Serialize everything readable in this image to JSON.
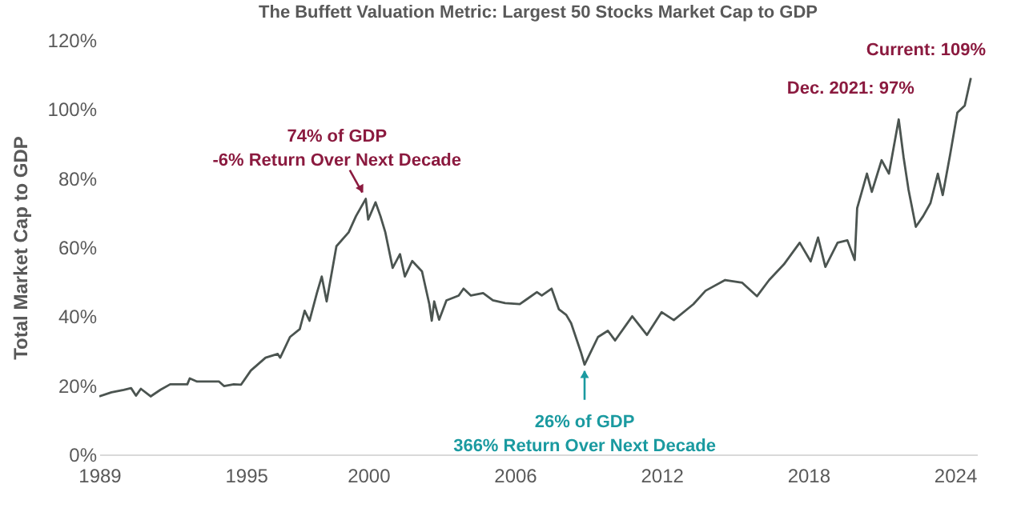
{
  "chart_data": {
    "type": "line",
    "title": "The Buffett Valuation Metric: Largest 50 Stocks Market Cap to GDP",
    "ylabel": "Total Market Cap to GDP",
    "x": [
      1989.0,
      1989.5,
      1990.0,
      1990.3,
      1990.5,
      1990.7,
      1991.1,
      1991.5,
      1991.9,
      1992.6,
      1992.7,
      1993.0,
      1993.9,
      1994.1,
      1994.5,
      1994.8,
      1995.2,
      1995.8,
      1996.3,
      1996.4,
      1996.8,
      1997.2,
      1997.4,
      1997.6,
      1997.9,
      1998.1,
      1998.3,
      1998.7,
      1999.2,
      1999.5,
      1999.9,
      2000.0,
      2000.3,
      2000.5,
      2000.7,
      2001.0,
      2001.3,
      2001.5,
      2001.8,
      2002.2,
      2002.5,
      2002.6,
      2002.7,
      2002.9,
      2003.2,
      2003.7,
      2003.9,
      2004.2,
      2004.7,
      2005.1,
      2005.6,
      2006.2,
      2006.5,
      2006.9,
      2007.1,
      2007.5,
      2007.8,
      2008.1,
      2008.3,
      2008.7,
      2008.85,
      2009.1,
      2009.4,
      2009.8,
      2010.1,
      2010.8,
      2011.4,
      2012.0,
      2012.5,
      2013.3,
      2013.8,
      2014.6,
      2015.3,
      2015.9,
      2016.4,
      2017.0,
      2017.65,
      2018.1,
      2018.4,
      2018.7,
      2019.2,
      2019.6,
      2019.9,
      2020.0,
      2020.4,
      2020.6,
      2021.0,
      2021.3,
      2021.7,
      2021.9,
      2022.1,
      2022.4,
      2022.7,
      2023.0,
      2023.3,
      2023.5,
      2023.8,
      2024.1,
      2024.4,
      2024.65
    ],
    "series": [
      {
        "color": "#4b5450",
        "values": [
          16.8,
          18,
          18.7,
          19.2,
          17,
          19,
          16.8,
          18.7,
          20.3,
          20.3,
          22,
          21.1,
          21.1,
          19.8,
          20.3,
          20.2,
          24.3,
          28,
          29.1,
          28,
          34,
          36.3,
          41.6,
          38.7,
          46.7,
          51.5,
          44.3,
          60.3,
          64.3,
          69,
          74,
          68,
          73,
          69,
          64.3,
          54,
          58,
          51.5,
          56,
          53,
          43.5,
          38.7,
          44.3,
          39,
          44.6,
          46,
          48,
          46,
          46.7,
          44.6,
          43.8,
          43.5,
          45,
          47,
          46,
          48,
          42,
          40.4,
          38,
          29.6,
          26,
          29.6,
          34,
          35.8,
          33,
          40,
          34.6,
          41.2,
          38.9,
          43.5,
          47.4,
          50.5,
          49.7,
          45.8,
          50.5,
          55,
          61.3,
          55.9,
          62.8,
          54.3,
          61.3,
          62,
          56.3,
          71.3,
          81.3,
          76,
          85.2,
          81.3,
          97,
          86,
          76.7,
          65.9,
          69,
          72.8,
          81.3,
          75.1,
          86.7,
          99,
          101,
          109
        ]
      }
    ],
    "xlim": [
      1989,
      2024.9
    ],
    "xticks": [
      1989,
      1995,
      2000,
      2006,
      2012,
      2018,
      2024
    ],
    "ylim": [
      0,
      120
    ],
    "yticks": [
      {
        "value": 0,
        "label": "0%"
      },
      {
        "value": 20,
        "label": "20%"
      },
      {
        "value": 40,
        "label": "40%"
      },
      {
        "value": 60,
        "label": "60%"
      },
      {
        "value": 80,
        "label": "80%"
      },
      {
        "value": 100,
        "label": "100%"
      },
      {
        "value": 120,
        "label": "120%"
      }
    ],
    "annotations": [
      {
        "text": "74% of GDP\n-6% Return Over Next Decade",
        "x": 1999.9,
        "y": 74
      },
      {
        "text": "26% of GDP\n366% Return Over Next Decade",
        "x": 2008.85,
        "y": 26
      },
      {
        "text": "Dec. 2021: 97%",
        "x": 2021.7,
        "y": 97
      },
      {
        "text": "Current: 109%",
        "x": 2024.65,
        "y": 109
      }
    ]
  }
}
